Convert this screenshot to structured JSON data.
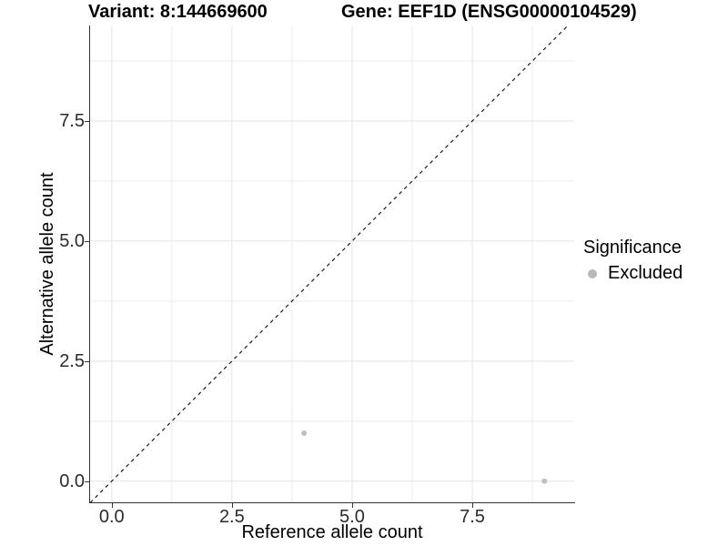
{
  "figure": {
    "titles": {
      "variant": "Variant: 8:144669600",
      "gene": "Gene: EEF1D (ENSG00000104529)"
    }
  },
  "chart_data": {
    "type": "scatter",
    "xlabel": "Reference allele count",
    "ylabel": "Alternative allele count",
    "xlim": [
      -0.45,
      9.62
    ],
    "ylim": [
      -0.44,
      9.49
    ],
    "x_ticks": {
      "values": [
        0,
        2.5,
        5,
        7.5
      ],
      "labels": [
        "0.0",
        "2.5",
        "5.0",
        "7.5"
      ]
    },
    "y_ticks": {
      "values": [
        0,
        2.5,
        5,
        7.5
      ],
      "labels": [
        "0.0",
        "2.5",
        "5.0",
        "7.5"
      ]
    },
    "x_minor_gridlines": [
      1.25,
      3.75,
      6.25,
      8.75
    ],
    "y_minor_gridlines": [
      1.25,
      3.75,
      6.25,
      8.75
    ],
    "grid": "major and minor, light gray on white",
    "reference_line": {
      "kind": "identity y = x",
      "style": "dashed",
      "color": "#1a1a1a"
    },
    "series": [
      {
        "name": "Excluded",
        "color": "#bfbfbf",
        "point_radius": 3,
        "points": [
          {
            "x": 4,
            "y": 1
          },
          {
            "x": 9,
            "y": 0
          }
        ]
      }
    ],
    "legend": {
      "title": "Significance",
      "position": "right",
      "entries": [
        {
          "label": "Excluded",
          "color": "#b9b9b9"
        }
      ]
    }
  },
  "colors": {
    "background": "#ffffff",
    "axis_line": "#333333",
    "tick_label": "#2b2b2b",
    "grid_major": "#e4e4e4",
    "grid_minor": "#ededed",
    "point": "#bfbfbf",
    "dashed_line": "#1a1a1a"
  }
}
